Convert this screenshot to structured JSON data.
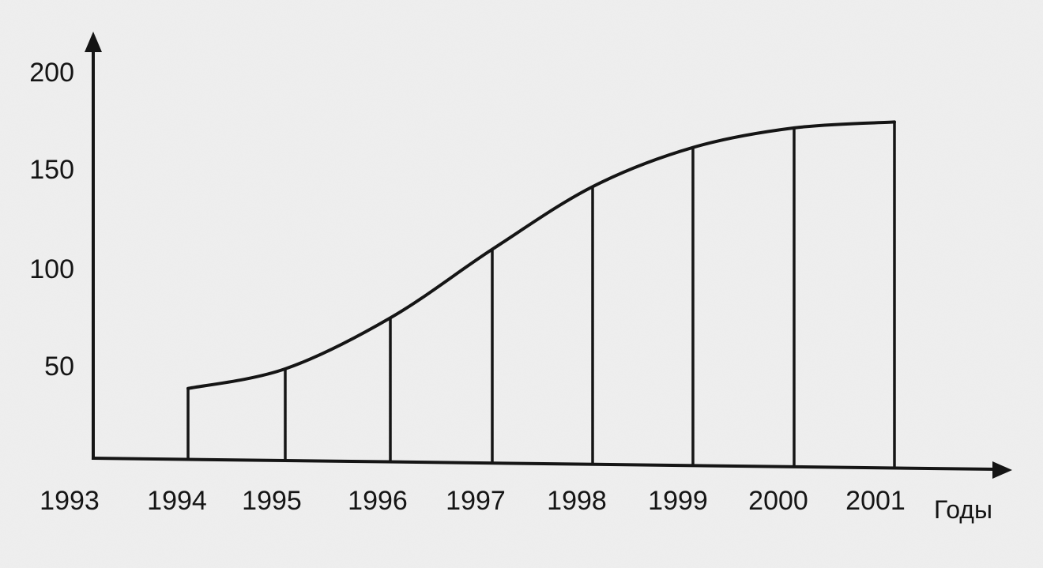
{
  "chart_data": {
    "type": "area",
    "title": "",
    "xlabel": "Годы",
    "ylabel": "",
    "x_ticks": [
      "1993",
      "1994",
      "1995",
      "1996",
      "1997",
      "1998",
      "1999",
      "2000",
      "2001"
    ],
    "y_ticks": [
      "50",
      "100",
      "150",
      "200"
    ],
    "categories": [
      "1994",
      "1995",
      "1996",
      "1997",
      "1998",
      "1999",
      "2000",
      "2001"
    ],
    "values": [
      36,
      46,
      72,
      107,
      139,
      159,
      169,
      172
    ],
    "ylim": [
      0,
      215
    ],
    "xlim": [
      1993,
      2001
    ],
    "grid": false,
    "legend": "none",
    "colors": {
      "line": "#151515",
      "background": "#efefef"
    }
  }
}
